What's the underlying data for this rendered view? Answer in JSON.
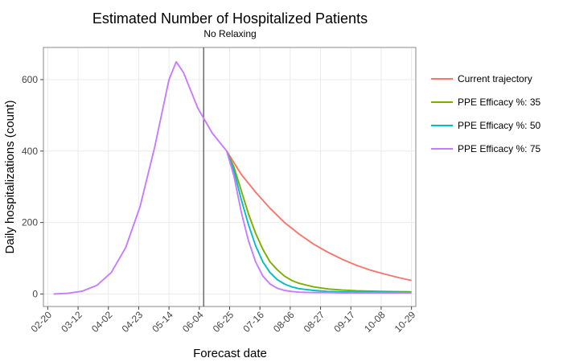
{
  "chart_data": {
    "type": "line",
    "title": "Estimated Number of Hospitalized Patients",
    "subtitle": "No Relaxing",
    "xlabel": "Forecast date",
    "ylabel": "Daily hospitalizations (count)",
    "x_ticks": [
      "02-20",
      "03-12",
      "04-02",
      "04-23",
      "05-14",
      "06-04",
      "06-25",
      "07-16",
      "08-06",
      "08-27",
      "09-17",
      "10-08",
      "10-29"
    ],
    "x_range": [
      "02-17",
      "11-01"
    ],
    "ylim": [
      -35,
      690
    ],
    "y_ticks": [
      0,
      200,
      400,
      600
    ],
    "grid": true,
    "legend_position": "right",
    "vline_date": "06-07",
    "shared": {
      "x": [
        "02-24",
        "03-05",
        "03-15",
        "03-25",
        "04-04",
        "04-14",
        "04-24",
        "05-04",
        "05-14",
        "05-19",
        "05-24",
        "06-03",
        "06-13",
        "06-23"
      ],
      "y": [
        0,
        2,
        8,
        24,
        60,
        130,
        245,
        410,
        600,
        650,
        620,
        520,
        450,
        400
      ]
    },
    "series": [
      {
        "name": "Current trajectory",
        "color": "#F8766D",
        "x": [
          "06-23",
          "07-03",
          "07-13",
          "07-23",
          "08-02",
          "08-12",
          "08-22",
          "09-01",
          "09-11",
          "09-21",
          "10-01",
          "10-11",
          "10-21",
          "10-29"
        ],
        "y": [
          400,
          335,
          285,
          240,
          200,
          168,
          140,
          117,
          97,
          80,
          66,
          55,
          45,
          38
        ]
      },
      {
        "name": "PPE Efficacy %: 35",
        "color": "#7CAE00",
        "x": [
          "06-23",
          "06-28",
          "07-03",
          "07-08",
          "07-13",
          "07-18",
          "07-23",
          "07-28",
          "08-02",
          "08-07",
          "08-12",
          "08-22",
          "09-01",
          "09-11",
          "09-21",
          "10-01",
          "10-11",
          "10-29"
        ],
        "y": [
          400,
          355,
          290,
          225,
          170,
          125,
          90,
          68,
          50,
          38,
          30,
          20,
          14,
          11,
          9,
          8,
          7,
          6
        ]
      },
      {
        "name": "PPE Efficacy %: 50",
        "color": "#00BFC4",
        "x": [
          "06-23",
          "06-28",
          "07-03",
          "07-08",
          "07-13",
          "07-18",
          "07-23",
          "07-28",
          "08-02",
          "08-07",
          "08-12",
          "08-22",
          "09-01",
          "09-11",
          "09-21",
          "10-01",
          "10-11",
          "10-29"
        ],
        "y": [
          400,
          345,
          265,
          195,
          135,
          90,
          60,
          40,
          28,
          20,
          15,
          10,
          7,
          6,
          5,
          5,
          5,
          4
        ]
      },
      {
        "name": "PPE Efficacy %: 75",
        "color": "#C77CFF",
        "x": [
          "06-23",
          "06-28",
          "07-03",
          "07-08",
          "07-13",
          "07-18",
          "07-23",
          "07-28",
          "08-02",
          "08-07",
          "08-12",
          "08-22",
          "09-01",
          "09-11",
          "09-21",
          "10-01",
          "10-11",
          "10-29"
        ],
        "y": [
          400,
          330,
          230,
          150,
          90,
          50,
          28,
          16,
          10,
          7,
          5,
          4,
          4,
          3,
          3,
          3,
          3,
          3
        ]
      }
    ]
  }
}
